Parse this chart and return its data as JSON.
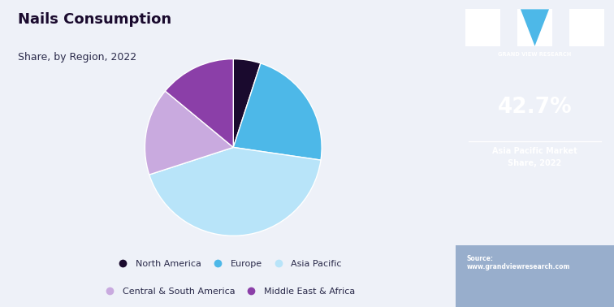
{
  "title": "Nails Consumption",
  "subtitle": "Share, by Region, 2022",
  "segments": [
    "North America",
    "Europe",
    "Asia Pacific",
    "Central & South America",
    "Middle East & Africa"
  ],
  "values": [
    5.0,
    22.3,
    42.7,
    16.0,
    14.0
  ],
  "colors": [
    "#1a0a2e",
    "#4db8e8",
    "#b8e4f9",
    "#c9aadf",
    "#8b3fa8"
  ],
  "bg_color": "#eef1f8",
  "sidebar_color": "#2d1b5e",
  "sidebar_bottom_color": "#6a8ab5",
  "highlight_value": "42.7%",
  "highlight_label": "Asia Pacific Market\nShare, 2022",
  "source_text": "Source:\nwww.grandviewresearch.com",
  "legend_items": [
    "North America",
    "Europe",
    "Asia Pacific",
    "Central & South America",
    "Middle East & Africa"
  ],
  "legend_colors": [
    "#1a0a2e",
    "#4db8e8",
    "#b8e4f9",
    "#c9aadf",
    "#8b3fa8"
  ]
}
